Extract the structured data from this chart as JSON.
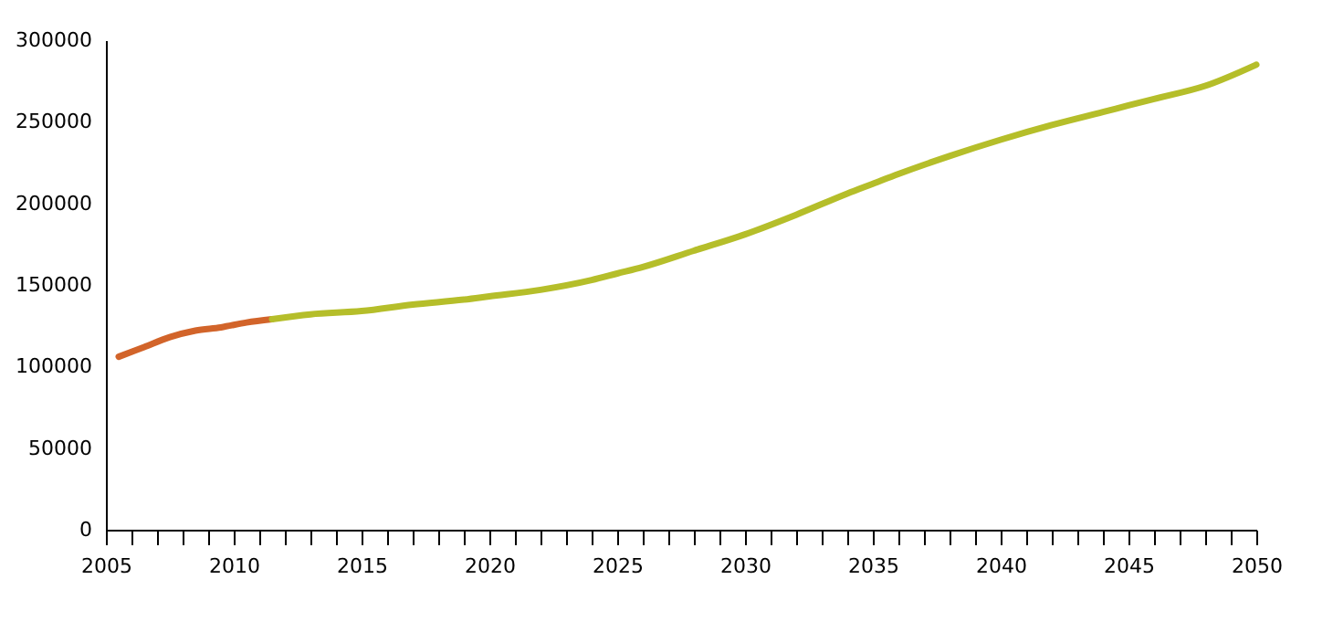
{
  "chart_data": {
    "type": "line",
    "xlim": [
      2005,
      2050
    ],
    "ylim": [
      0,
      300000
    ],
    "xticks": [
      2005,
      {
        "value": 2006,
        "label": null
      },
      {
        "value": 2007,
        "label": null
      },
      {
        "value": 2008,
        "label": null
      },
      {
        "value": 2009,
        "label": null
      },
      2010,
      {
        "value": 2011,
        "label": null
      },
      {
        "value": 2012,
        "label": null
      },
      {
        "value": 2013,
        "label": null
      },
      {
        "value": 2014,
        "label": null
      },
      2015,
      {
        "value": 2016,
        "label": null
      },
      {
        "value": 2017,
        "label": null
      },
      {
        "value": 2018,
        "label": null
      },
      {
        "value": 2019,
        "label": null
      },
      2020,
      {
        "value": 2021,
        "label": null
      },
      {
        "value": 2022,
        "label": null
      },
      {
        "value": 2023,
        "label": null
      },
      {
        "value": 2024,
        "label": null
      },
      2025,
      {
        "value": 2026,
        "label": null
      },
      {
        "value": 2027,
        "label": null
      },
      {
        "value": 2028,
        "label": null
      },
      {
        "value": 2029,
        "label": null
      },
      2030,
      {
        "value": 2031,
        "label": null
      },
      {
        "value": 2032,
        "label": null
      },
      {
        "value": 2033,
        "label": null
      },
      {
        "value": 2034,
        "label": null
      },
      2035,
      {
        "value": 2036,
        "label": null
      },
      {
        "value": 2037,
        "label": null
      },
      {
        "value": 2038,
        "label": null
      },
      {
        "value": 2039,
        "label": null
      },
      2040,
      {
        "value": 2041,
        "label": null
      },
      {
        "value": 2042,
        "label": null
      },
      {
        "value": 2043,
        "label": null
      },
      {
        "value": 2044,
        "label": null
      },
      2045,
      {
        "value": 2046,
        "label": null
      },
      {
        "value": 2047,
        "label": null
      },
      {
        "value": 2048,
        "label": null
      },
      {
        "value": 2049,
        "label": null
      },
      2050
    ],
    "yticks": [
      0,
      50000,
      100000,
      150000,
      200000,
      250000,
      300000
    ],
    "grid": false,
    "marker": "none",
    "line_style": "solid",
    "series": [
      {
        "color": "#d2642a",
        "x": [
          2005.5,
          2006.5,
          2007.5,
          2008.5,
          2009.5,
          2010.5,
          2011.5
        ],
        "values": [
          106000,
          112000,
          118000,
          122000,
          124000,
          127000,
          129000
        ]
      },
      {
        "color": "#b5be2a",
        "x": [
          2011.5,
          2013,
          2015,
          2017,
          2019,
          2020,
          2022,
          2024,
          2025,
          2026,
          2028,
          2030,
          2032,
          2034,
          2035,
          2036,
          2038,
          2040,
          2042,
          2044,
          2045,
          2046,
          2048,
          2050
        ],
        "values": [
          129000,
          132000,
          134000,
          138000,
          141000,
          143000,
          147000,
          153000,
          157000,
          161000,
          171000,
          181000,
          193000,
          206000,
          212000,
          218000,
          229000,
          239000,
          248000,
          256000,
          260000,
          264000,
          272000,
          285000
        ]
      }
    ]
  }
}
